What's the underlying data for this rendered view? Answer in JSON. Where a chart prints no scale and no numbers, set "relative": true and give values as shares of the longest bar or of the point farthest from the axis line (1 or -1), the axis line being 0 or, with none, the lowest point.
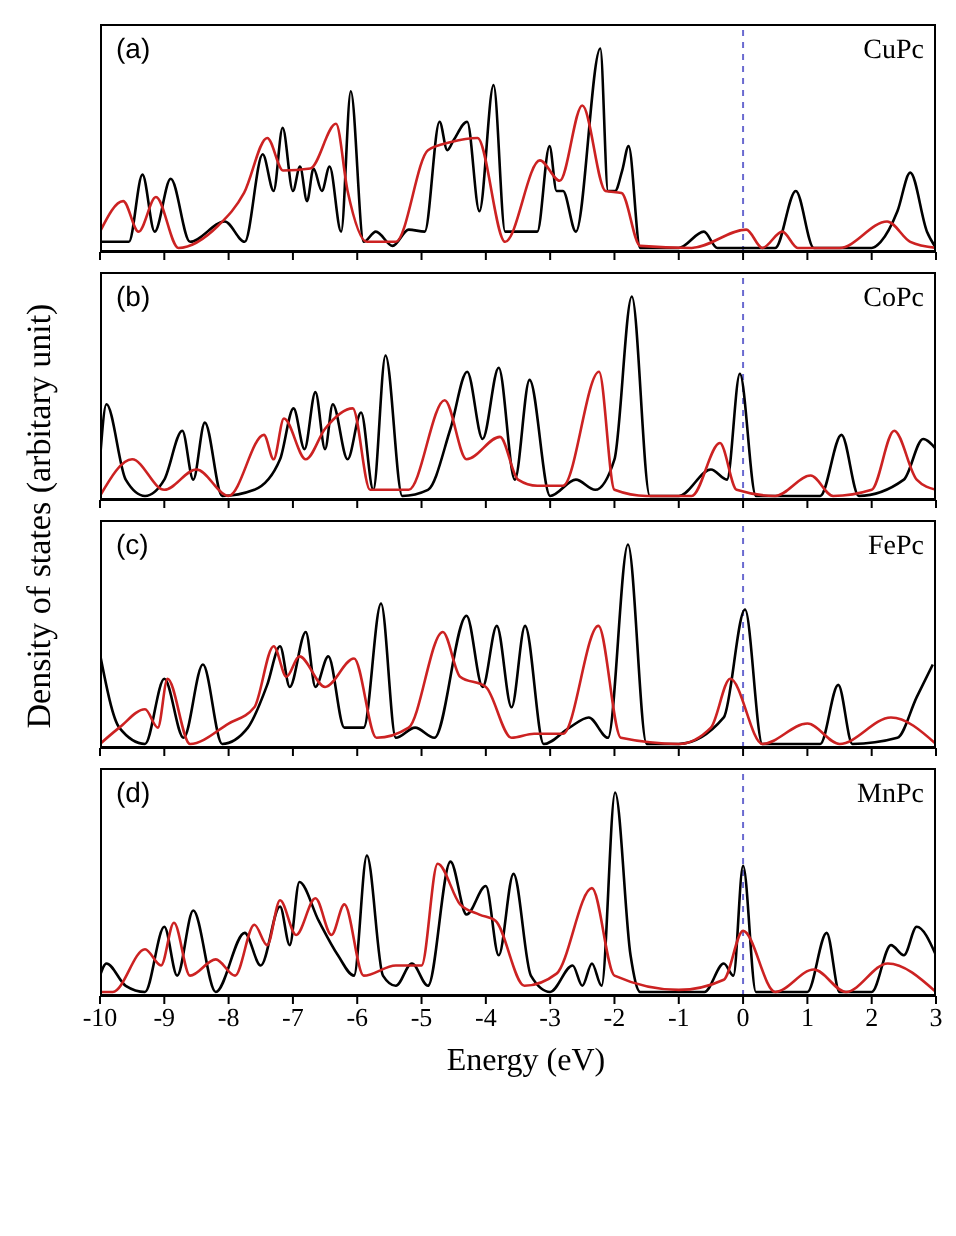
{
  "chart_data": [
    {
      "type": "line",
      "relative": true,
      "ylabel": "Density of states (arbitary unit)",
      "annotations": [
        "(a)",
        "CuPc"
      ],
      "xlim": [
        -10,
        3
      ],
      "xticks": [
        -10,
        -9,
        -8,
        -7,
        -6,
        -5,
        -4,
        -3,
        -2,
        -1,
        0,
        1,
        2,
        3
      ],
      "tick_labels": false,
      "grid": false,
      "legend": false,
      "ref_lines": [
        {
          "axis": "x",
          "value": 0,
          "color": "#6a6ad0",
          "line_style": "dashed"
        }
      ],
      "series": [
        {
          "color": "#000000",
          "x": [
            -10,
            -9.55,
            -9.34,
            -9.15,
            -8.9,
            -8.6,
            -8.06,
            -7.75,
            -7.47,
            -7.3,
            -7.16,
            -7.0,
            -6.89,
            -6.78,
            -6.68,
            -6.55,
            -6.43,
            -6.25,
            -6.1,
            -5.9,
            -5.71,
            -5.45,
            -5.2,
            -4.95,
            -4.72,
            -4.6,
            -4.5,
            -4.29,
            -4.1,
            -3.88,
            -3.7,
            -3.47,
            -3.2,
            -3.01,
            -2.9,
            -2.8,
            -2.6,
            -2.22,
            -2.1,
            -1.99,
            -1.88,
            -1.78,
            -1.6,
            -1.0,
            -0.61,
            -0.4,
            0.5,
            0.82,
            1.1,
            2.0,
            2.14,
            2.4,
            2.6,
            2.86,
            3
          ],
          "values": [
            0.05,
            0.05,
            0.38,
            0.1,
            0.36,
            0.05,
            0.15,
            0.05,
            0.48,
            0.3,
            0.61,
            0.3,
            0.42,
            0.25,
            0.41,
            0.3,
            0.42,
            0.1,
            0.79,
            0.05,
            0.1,
            0.03,
            0.11,
            0.1,
            0.64,
            0.5,
            0.55,
            0.64,
            0.2,
            0.82,
            0.1,
            0.1,
            0.1,
            0.52,
            0.3,
            0.3,
            0.1,
            1.0,
            0.3,
            0.3,
            0.4,
            0.52,
            0.02,
            0.02,
            0.1,
            0.02,
            0.02,
            0.3,
            0.02,
            0.02,
            0.05,
            0.2,
            0.39,
            0.1,
            0.02
          ]
        },
        {
          "color": "#cc2222",
          "x": [
            -10,
            -9.64,
            -9.4,
            -9.13,
            -8.78,
            -8.16,
            -7.76,
            -7.4,
            -7.15,
            -6.73,
            -6.33,
            -6.15,
            -5.85,
            -5.4,
            -4.9,
            -4.54,
            -4.13,
            -3.7,
            -3.16,
            -2.85,
            -2.5,
            -2.14,
            -1.89,
            -1.6,
            -0.8,
            0.05,
            0.3,
            0.61,
            0.85,
            1.5,
            2.24,
            2.6,
            3
          ],
          "values": [
            0.1,
            0.25,
            0.1,
            0.27,
            0.02,
            0.13,
            0.29,
            0.56,
            0.4,
            0.41,
            0.63,
            0.3,
            0.05,
            0.05,
            0.5,
            0.54,
            0.56,
            0.05,
            0.45,
            0.35,
            0.72,
            0.3,
            0.29,
            0.03,
            0.02,
            0.11,
            0.02,
            0.1,
            0.02,
            0.02,
            0.15,
            0.05,
            0.02
          ]
        }
      ]
    },
    {
      "type": "line",
      "relative": true,
      "annotations": [
        "(b)",
        "CoPc"
      ],
      "xlim": [
        -10,
        3
      ],
      "xticks": [
        -10,
        -9,
        -8,
        -7,
        -6,
        -5,
        -4,
        -3,
        -2,
        -1,
        0,
        1,
        2,
        3
      ],
      "tick_labels": false,
      "grid": false,
      "legend": false,
      "ref_lines": [
        {
          "axis": "x",
          "value": 0,
          "color": "#6a6ad0",
          "line_style": "dashed"
        }
      ],
      "series": [
        {
          "color": "#000000",
          "x": [
            -10,
            -9.9,
            -9.6,
            -9.3,
            -9.0,
            -8.72,
            -8.55,
            -8.37,
            -8.1,
            -7.6,
            -7.2,
            -6.99,
            -6.82,
            -6.65,
            -6.5,
            -6.38,
            -6.15,
            -5.94,
            -5.75,
            -5.56,
            -5.3,
            -4.9,
            -4.55,
            -4.29,
            -4.05,
            -3.8,
            -3.55,
            -3.32,
            -3.0,
            -2.6,
            -2.3,
            -2.0,
            -1.73,
            -1.45,
            -1.0,
            -0.5,
            -0.25,
            -0.05,
            0.2,
            1.2,
            1.53,
            1.8,
            2.5,
            2.8,
            3
          ],
          "values": [
            0.2,
            0.47,
            0.1,
            0.02,
            0.1,
            0.34,
            0.1,
            0.38,
            0.02,
            0.05,
            0.2,
            0.45,
            0.25,
            0.53,
            0.25,
            0.47,
            0.2,
            0.43,
            0.05,
            0.71,
            0.02,
            0.05,
            0.35,
            0.63,
            0.3,
            0.65,
            0.1,
            0.59,
            0.02,
            0.1,
            0.05,
            0.2,
            1.0,
            0.02,
            0.02,
            0.15,
            0.1,
            0.62,
            0.02,
            0.02,
            0.32,
            0.02,
            0.1,
            0.3,
            0.25
          ]
        },
        {
          "color": "#cc2222",
          "x": [
            -10,
            -9.5,
            -9.0,
            -8.5,
            -8.0,
            -7.45,
            -7.3,
            -7.14,
            -6.8,
            -6.5,
            -6.07,
            -5.8,
            -5.2,
            -4.64,
            -4.3,
            -3.78,
            -3.5,
            -3.2,
            -2.8,
            -2.24,
            -2.0,
            -1.5,
            -0.8,
            -0.36,
            -0.1,
            0.5,
            1.05,
            1.4,
            2.0,
            2.35,
            2.7,
            3
          ],
          "values": [
            0.02,
            0.2,
            0.05,
            0.15,
            0.02,
            0.32,
            0.2,
            0.4,
            0.2,
            0.35,
            0.45,
            0.05,
            0.05,
            0.49,
            0.2,
            0.31,
            0.1,
            0.07,
            0.07,
            0.63,
            0.05,
            0.02,
            0.02,
            0.28,
            0.05,
            0.02,
            0.12,
            0.02,
            0.05,
            0.34,
            0.1,
            0.05
          ]
        }
      ]
    },
    {
      "type": "line",
      "relative": true,
      "annotations": [
        "(c)",
        "FePc"
      ],
      "xlim": [
        -10,
        3
      ],
      "xticks": [
        -10,
        -9,
        -8,
        -7,
        -6,
        -5,
        -4,
        -3,
        -2,
        -1,
        0,
        1,
        2,
        3
      ],
      "tick_labels": false,
      "grid": false,
      "legend": false,
      "ref_lines": [
        {
          "axis": "x",
          "value": 0,
          "color": "#6a6ad0",
          "line_style": "dashed"
        }
      ],
      "series": [
        {
          "color": "#000000",
          "x": [
            -10,
            -9.7,
            -9.3,
            -9.0,
            -8.7,
            -8.4,
            -8.1,
            -7.7,
            -7.4,
            -7.2,
            -7.05,
            -6.8,
            -6.65,
            -6.45,
            -6.2,
            -5.9,
            -5.63,
            -5.4,
            -5.1,
            -4.8,
            -4.3,
            -4.05,
            -3.83,
            -3.6,
            -3.39,
            -3.1,
            -2.7,
            -2.4,
            -2.1,
            -1.79,
            -1.5,
            -1.0,
            -0.3,
            0.03,
            0.3,
            1.2,
            1.48,
            1.7,
            2.4,
            2.7,
            2.95
          ],
          "values": [
            0.46,
            0.1,
            0.02,
            0.34,
            0.05,
            0.41,
            0.02,
            0.1,
            0.31,
            0.5,
            0.3,
            0.57,
            0.3,
            0.45,
            0.1,
            0.1,
            0.71,
            0.05,
            0.1,
            0.05,
            0.65,
            0.3,
            0.6,
            0.2,
            0.6,
            0.02,
            0.1,
            0.15,
            0.05,
            1.0,
            0.02,
            0.02,
            0.15,
            0.68,
            0.02,
            0.02,
            0.31,
            0.02,
            0.05,
            0.25,
            0.41
          ]
        },
        {
          "color": "#cc2222",
          "x": [
            -10,
            -9.7,
            -9.3,
            -9.1,
            -8.95,
            -8.6,
            -8.0,
            -7.6,
            -7.3,
            -7.1,
            -6.9,
            -6.5,
            -6.05,
            -5.7,
            -5.2,
            -4.67,
            -4.4,
            -4.0,
            -3.6,
            -3.25,
            -2.8,
            -2.25,
            -1.9,
            -1.0,
            -0.5,
            -0.2,
            0.3,
            1.0,
            1.5,
            2.3,
            3
          ],
          "values": [
            0.02,
            0.1,
            0.19,
            0.1,
            0.34,
            0.02,
            0.12,
            0.2,
            0.5,
            0.35,
            0.45,
            0.3,
            0.44,
            0.05,
            0.1,
            0.57,
            0.35,
            0.3,
            0.05,
            0.07,
            0.07,
            0.6,
            0.05,
            0.02,
            0.1,
            0.34,
            0.02,
            0.12,
            0.02,
            0.15,
            0.02
          ]
        }
      ]
    },
    {
      "type": "line",
      "relative": true,
      "xlabel": "Energy (eV)",
      "annotations": [
        "(d)",
        "MnPc"
      ],
      "xlim": [
        -10,
        3
      ],
      "xticks": [
        -10,
        -9,
        -8,
        -7,
        -6,
        -5,
        -4,
        -3,
        -2,
        -1,
        0,
        1,
        2,
        3
      ],
      "tick_labels": "x",
      "grid": false,
      "legend": false,
      "ref_lines": [
        {
          "axis": "x",
          "value": 0,
          "color": "#6a6ad0",
          "line_style": "dashed"
        }
      ],
      "series": [
        {
          "color": "#000000",
          "x": [
            -10,
            -9.9,
            -9.6,
            -9.3,
            -9.0,
            -8.8,
            -8.55,
            -8.2,
            -7.75,
            -7.5,
            -7.2,
            -7.05,
            -6.9,
            -6.6,
            -6.3,
            -6.05,
            -5.85,
            -5.6,
            -5.4,
            -5.15,
            -4.9,
            -4.55,
            -4.3,
            -4.0,
            -3.8,
            -3.57,
            -3.3,
            -3.0,
            -2.65,
            -2.5,
            -2.35,
            -2.2,
            -1.99,
            -1.75,
            -1.6,
            -0.6,
            -0.3,
            -0.15,
            0,
            0.2,
            1.0,
            1.3,
            1.5,
            2.0,
            2.3,
            2.5,
            2.7,
            3
          ],
          "values": [
            0.1,
            0.16,
            0.05,
            0.02,
            0.34,
            0.1,
            0.42,
            0.02,
            0.31,
            0.15,
            0.44,
            0.25,
            0.56,
            0.37,
            0.2,
            0.1,
            0.69,
            0.1,
            0.05,
            0.16,
            0.05,
            0.66,
            0.4,
            0.54,
            0.2,
            0.6,
            0.1,
            0.02,
            0.15,
            0.05,
            0.16,
            0.05,
            1.0,
            0.2,
            0.02,
            0.02,
            0.16,
            0.1,
            0.64,
            0.02,
            0.02,
            0.31,
            0.02,
            0.02,
            0.25,
            0.2,
            0.34,
            0.2
          ]
        },
        {
          "color": "#cc2222",
          "x": [
            -10,
            -9.8,
            -9.3,
            -9.05,
            -8.85,
            -8.6,
            -8.2,
            -7.9,
            -7.6,
            -7.4,
            -7.2,
            -6.95,
            -6.65,
            -6.4,
            -6.2,
            -5.9,
            -5.4,
            -5.0,
            -4.75,
            -4.4,
            -4.1,
            -3.85,
            -3.4,
            -2.9,
            -2.35,
            -2.0,
            -1.0,
            -0.3,
            0,
            0.5,
            1.1,
            1.6,
            2.25,
            3
          ],
          "values": [
            0.02,
            0.02,
            0.23,
            0.15,
            0.36,
            0.1,
            0.18,
            0.1,
            0.35,
            0.25,
            0.47,
            0.3,
            0.48,
            0.3,
            0.45,
            0.1,
            0.15,
            0.15,
            0.65,
            0.45,
            0.4,
            0.37,
            0.05,
            0.11,
            0.53,
            0.1,
            0.03,
            0.08,
            0.32,
            0.02,
            0.13,
            0.02,
            0.16,
            0.02
          ]
        }
      ]
    }
  ]
}
